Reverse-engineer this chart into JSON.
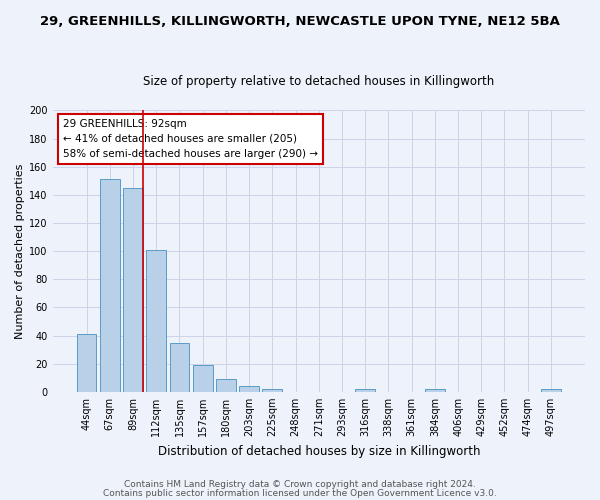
{
  "title1": "29, GREENHILLS, KILLINGWORTH, NEWCASTLE UPON TYNE, NE12 5BA",
  "title2": "Size of property relative to detached houses in Killingworth",
  "xlabel": "Distribution of detached houses by size in Killingworth",
  "ylabel": "Number of detached properties",
  "bar_labels": [
    "44sqm",
    "67sqm",
    "89sqm",
    "112sqm",
    "135sqm",
    "157sqm",
    "180sqm",
    "203sqm",
    "225sqm",
    "248sqm",
    "271sqm",
    "293sqm",
    "316sqm",
    "338sqm",
    "361sqm",
    "384sqm",
    "406sqm",
    "429sqm",
    "452sqm",
    "474sqm",
    "497sqm"
  ],
  "bar_values": [
    41,
    151,
    145,
    101,
    35,
    19,
    9,
    4,
    2,
    0,
    0,
    0,
    2,
    0,
    0,
    2,
    0,
    0,
    0,
    0,
    2
  ],
  "bar_color": "#b8d0e8",
  "bar_edge_color": "#5a9bc8",
  "bg_color": "#eef2fa",
  "grid_color": "#ccd4e8",
  "annotation_title": "29 GREENHILLS: 92sqm",
  "annotation_line1": "← 41% of detached houses are smaller (205)",
  "annotation_line2": "58% of semi-detached houses are larger (290) →",
  "annotation_box_color": "#ffffff",
  "annotation_box_edge": "#cc0000",
  "redline_color": "#cc0000",
  "footnote1": "Contains HM Land Registry data © Crown copyright and database right 2024.",
  "footnote2": "Contains public sector information licensed under the Open Government Licence v3.0.",
  "ylim": [
    0,
    200
  ],
  "yticks": [
    0,
    20,
    40,
    60,
    80,
    100,
    120,
    140,
    160,
    180,
    200
  ],
  "title1_fontsize": 9.5,
  "title2_fontsize": 8.5,
  "xlabel_fontsize": 8.5,
  "ylabel_fontsize": 8,
  "tick_fontsize": 7,
  "annotation_fontsize": 7.5,
  "footnote_fontsize": 6.5
}
